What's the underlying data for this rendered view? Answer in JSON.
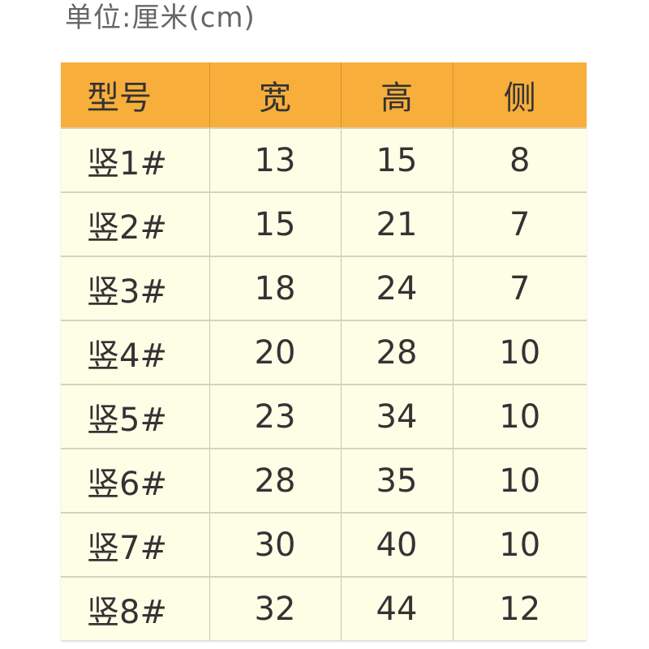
{
  "unit_label": "单位:厘米(cm)",
  "table": {
    "headers": [
      "型号",
      "宽",
      "高",
      "侧"
    ],
    "rows": [
      [
        "竖1#",
        "13",
        "15",
        "8"
      ],
      [
        "竖2#",
        "15",
        "21",
        "7"
      ],
      [
        "竖3#",
        "18",
        "24",
        "7"
      ],
      [
        "竖4#",
        "20",
        "28",
        "10"
      ],
      [
        "竖5#",
        "23",
        "34",
        "10"
      ],
      [
        "竖6#",
        "28",
        "35",
        "10"
      ],
      [
        "竖7#",
        "30",
        "40",
        "10"
      ],
      [
        "竖8#",
        "32",
        "44",
        "12"
      ]
    ]
  },
  "colors": {
    "header_bg": "#f8ae3b",
    "cell_bg": "#fefde6"
  }
}
